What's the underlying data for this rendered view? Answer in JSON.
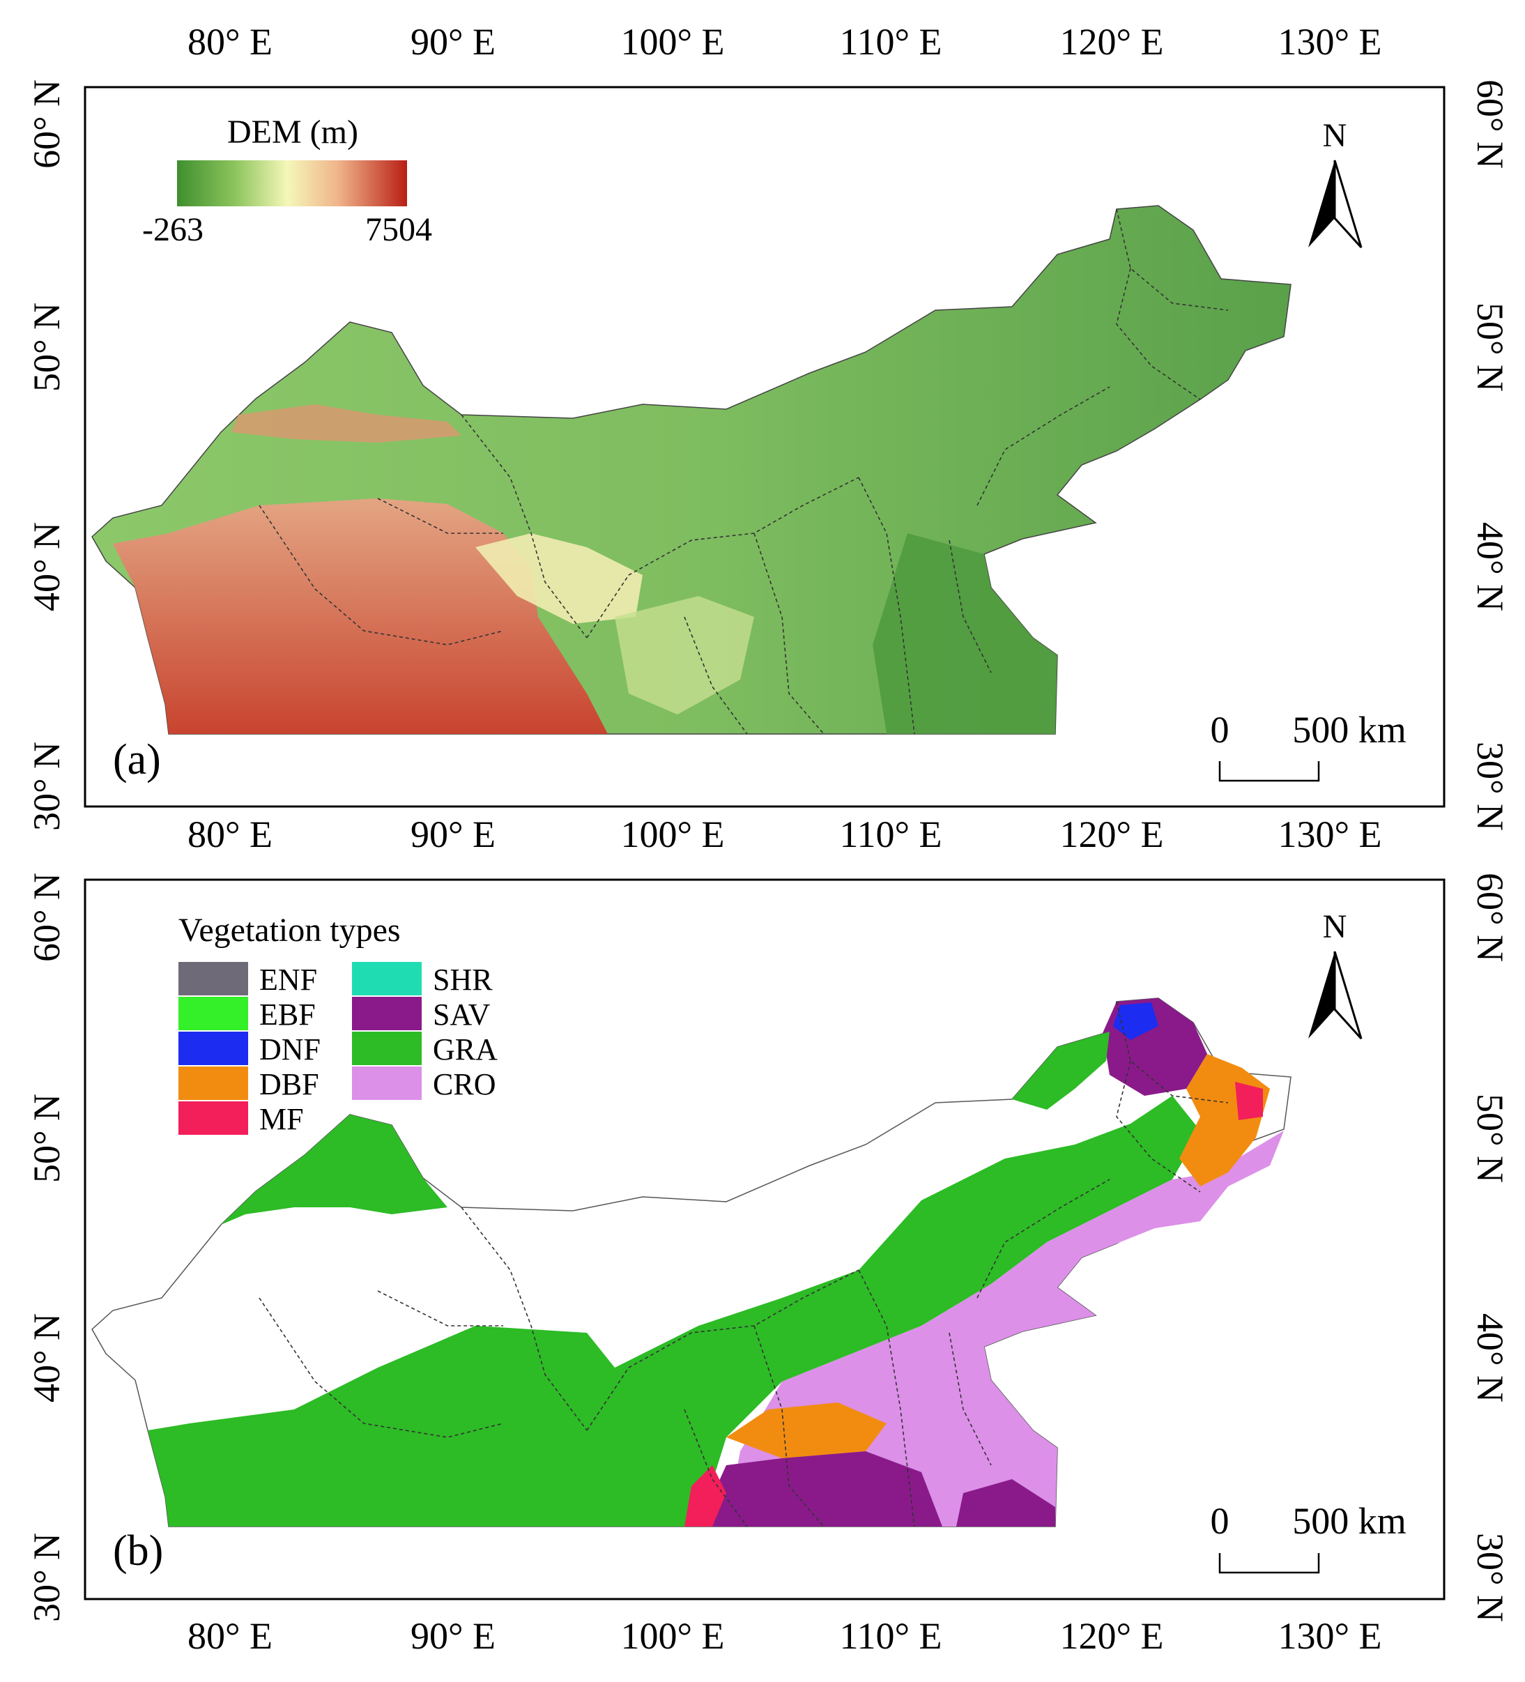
{
  "lon_ticks": [
    "80° E",
    "90° E",
    "100° E",
    "110° E",
    "120° E",
    "130° E"
  ],
  "lat_ticks": [
    "60° N",
    "50° N",
    "40° N",
    "30° N"
  ],
  "north_label": "N",
  "scale": {
    "zero": "0",
    "distance": "500 km"
  },
  "panel_a": {
    "label": "(a)",
    "legend": {
      "title": "DEM (m)",
      "min": "-263",
      "max": "7504"
    }
  },
  "panel_b": {
    "label": "(b)",
    "legend": {
      "title": "Vegetation types",
      "items": [
        {
          "code": "ENF",
          "color": "#6e6a78"
        },
        {
          "code": "EBF",
          "color": "#33f028"
        },
        {
          "code": "DNF",
          "color": "#1c2cf0"
        },
        {
          "code": "DBF",
          "color": "#f28c10"
        },
        {
          "code": "MF",
          "color": "#f21f5a"
        },
        {
          "code": "SHR",
          "color": "#20dcb2"
        },
        {
          "code": "SAV",
          "color": "#8a1a8a"
        },
        {
          "code": "GRA",
          "color": "#2dbb26"
        },
        {
          "code": "CRO",
          "color": "#dc90e8"
        }
      ]
    }
  }
}
